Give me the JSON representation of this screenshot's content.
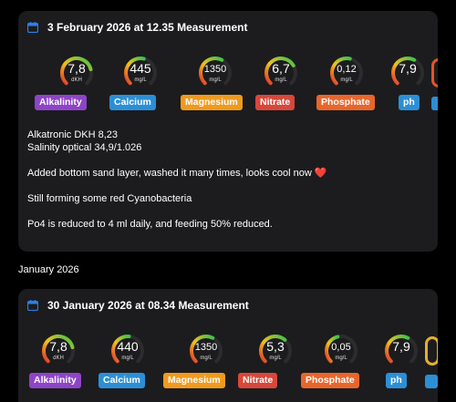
{
  "entries": [
    {
      "title": "3 February 2026 at 12.35  Measurement",
      "gauges": [
        {
          "value": "7,8",
          "unit": "dKH",
          "label": "Alkalinity",
          "color": "#8e44c8",
          "level": 0.78
        },
        {
          "value": "445",
          "unit": "mg/L",
          "label": "Calcium",
          "color": "#2c8fd6",
          "level": 0.55
        },
        {
          "value": "1350",
          "unit": "mg/L",
          "label": "Magnesium",
          "color": "#f09a1e",
          "level": 0.6
        },
        {
          "value": "6,7",
          "unit": "mg/L",
          "label": "Nitrate",
          "color": "#d8473a",
          "level": 0.72
        },
        {
          "value": "0,12",
          "unit": "mg/L",
          "label": "Phosphate",
          "color": "#e8662b",
          "level": 0.55
        },
        {
          "value": "7,9",
          "unit": "",
          "label": "ph",
          "color": "#2c8fd6",
          "level": 0.6
        }
      ],
      "notes": [
        "Alkatronic DKH 8,23",
        "Salinity optical 34,9/1.026",
        "Added bottom sand layer, washed it many times, looks cool now",
        "Still forming some red Cyanobacteria",
        "Po4 is reduced to 4 ml daily, and feeding 50% reduced."
      ],
      "heart": "❤️"
    },
    {
      "title": "30 January 2026 at 08.34  Measurement",
      "gauges": [
        {
          "value": "7,8",
          "unit": "dKH",
          "label": "Alkalinity",
          "color": "#8e44c8",
          "level": 0.78
        },
        {
          "value": "440",
          "unit": "mg/L",
          "label": "Calcium",
          "color": "#2c8fd6",
          "level": 0.52
        },
        {
          "value": "1350",
          "unit": "mg/L",
          "label": "Magnesium",
          "color": "#f09a1e",
          "level": 0.6
        },
        {
          "value": "5,3",
          "unit": "mg/L",
          "label": "Nitrate",
          "color": "#d8473a",
          "level": 0.65
        },
        {
          "value": "0,05",
          "unit": "mg/L",
          "label": "Phosphate",
          "color": "#e8662b",
          "level": 0.45
        },
        {
          "value": "7,9",
          "unit": "",
          "label": "ph",
          "color": "#2c8fd6",
          "level": 0.6
        }
      ]
    }
  ],
  "section_label": "January 2026"
}
